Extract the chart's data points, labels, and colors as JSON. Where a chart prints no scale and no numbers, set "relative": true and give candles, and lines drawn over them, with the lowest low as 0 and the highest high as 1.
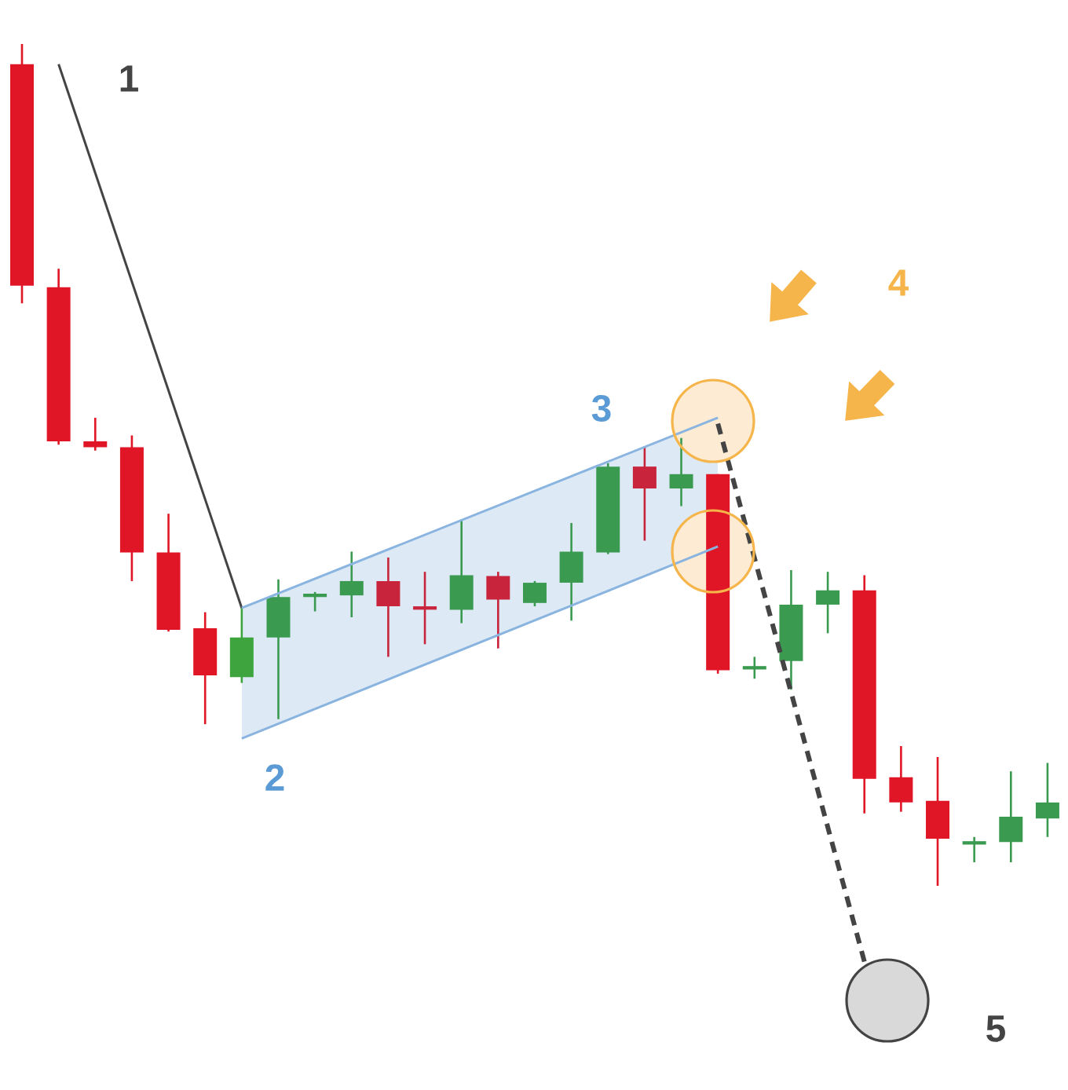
{
  "chart_data": {
    "type": "candlestick",
    "relative": true,
    "categories": [
      null,
      null,
      null,
      null,
      null,
      null,
      null,
      null,
      null,
      null,
      null,
      null,
      null,
      null,
      null,
      null,
      null,
      null,
      null,
      null,
      null,
      null,
      null,
      null,
      null,
      null,
      null,
      null,
      null
    ],
    "ohlc": [
      [
        0.976,
        1,
        0.692,
        0.713
      ],
      [
        0.711,
        0.733,
        0.524,
        0.528
      ],
      [
        0.528,
        0.556,
        0.517,
        0.521
      ],
      [
        0.521,
        0.535,
        0.362,
        0.396
      ],
      [
        0.396,
        0.442,
        0.302,
        0.304
      ],
      [
        0.306,
        0.325,
        0.192,
        0.25
      ],
      [
        0.248,
        0.33,
        0.241,
        0.295
      ],
      [
        0.295,
        0.364,
        0.198,
        0.343
      ],
      [
        0.343,
        0.349,
        0.326,
        0.347
      ],
      [
        0.345,
        0.397,
        0.319,
        0.362
      ],
      [
        0.362,
        0.39,
        0.272,
        0.332
      ],
      [
        0.332,
        0.373,
        0.287,
        0.328
      ],
      [
        0.328,
        0.435,
        0.312,
        0.369
      ],
      [
        0.368,
        0.373,
        0.282,
        0.34
      ],
      [
        0.336,
        0.362,
        0.332,
        0.36
      ],
      [
        0.36,
        0.431,
        0.315,
        0.397
      ],
      [
        0.396,
        0.502,
        0.394,
        0.498
      ],
      [
        0.498,
        0.522,
        0.41,
        0.472
      ],
      [
        0.472,
        0.532,
        0.451,
        0.489
      ],
      [
        0.489,
        0.489,
        0.252,
        0.256
      ],
      [
        0.259,
        0.272,
        0.246,
        0.259
      ],
      [
        0.267,
        0.375,
        0.233,
        0.334
      ],
      [
        0.334,
        0.373,
        0.3,
        0.351
      ],
      [
        0.351,
        0.369,
        0.086,
        0.127
      ],
      [
        0.129,
        0.166,
        0.088,
        0.099
      ],
      [
        0.101,
        0.153,
        0,
        0.056
      ],
      [
        0.05,
        0.058,
        0.028,
        0.052
      ],
      [
        0.052,
        0.136,
        0.028,
        0.082
      ],
      [
        0.08,
        0.146,
        0.058,
        0.099
      ]
    ],
    "colors": [
      "#e01525",
      "#e01525",
      "#e01525",
      "#e01525",
      "#e01525",
      "#e01525",
      "#3ea53e",
      "#3a9a50",
      "#3a9a50",
      "#3a9a50",
      "#c8243c",
      "#c8243c",
      "#3a9a50",
      "#c8243c",
      "#3a9a50",
      "#3a9a50",
      "#3a9a50",
      "#c8243c",
      "#3a9a50",
      "#e01525",
      "#3a9a50",
      "#3a9a50",
      "#3a9a50",
      "#e01525",
      "#e01525",
      "#e01525",
      "#3a9a50",
      "#3a9a50",
      "#3a9a50"
    ],
    "series": [
      {
        "type": "line",
        "values": [
          null,
          0.976,
          null,
          null,
          null,
          null,
          0.33,
          null,
          null,
          null,
          null,
          null,
          null,
          null,
          null,
          null,
          null,
          null,
          null,
          null,
          null,
          null,
          null,
          null,
          null,
          null,
          null,
          null,
          null
        ],
        "color": "#444444",
        "line_style": "solid"
      },
      {
        "type": "line",
        "values": [
          null,
          null,
          null,
          null,
          null,
          null,
          null,
          null,
          null,
          null,
          null,
          null,
          null,
          null,
          null,
          null,
          null,
          null,
          null,
          0.549,
          null,
          null,
          null,
          -0.09,
          null,
          null,
          null,
          null,
          null
        ],
        "color": "#444444",
        "line_style": "dashed"
      },
      {
        "type": "line",
        "values": [
          null,
          null,
          null,
          null,
          null,
          null,
          0.33,
          null,
          null,
          null,
          null,
          null,
          null,
          null,
          null,
          null,
          null,
          null,
          null,
          0.556,
          null,
          null,
          null,
          null,
          null,
          null,
          null,
          null,
          null
        ],
        "color": "#8ab4e0",
        "line_style": "solid"
      },
      {
        "type": "line",
        "values": [
          null,
          null,
          null,
          null,
          null,
          null,
          0.175,
          null,
          null,
          null,
          null,
          null,
          null,
          null,
          null,
          null,
          null,
          null,
          null,
          0.403,
          null,
          null,
          null,
          null,
          null,
          null,
          null,
          null,
          null
        ],
        "color": "#8ab4e0",
        "line_style": "solid"
      }
    ],
    "annotations": [
      "1",
      "2",
      "3",
      "4",
      "5"
    ]
  }
}
